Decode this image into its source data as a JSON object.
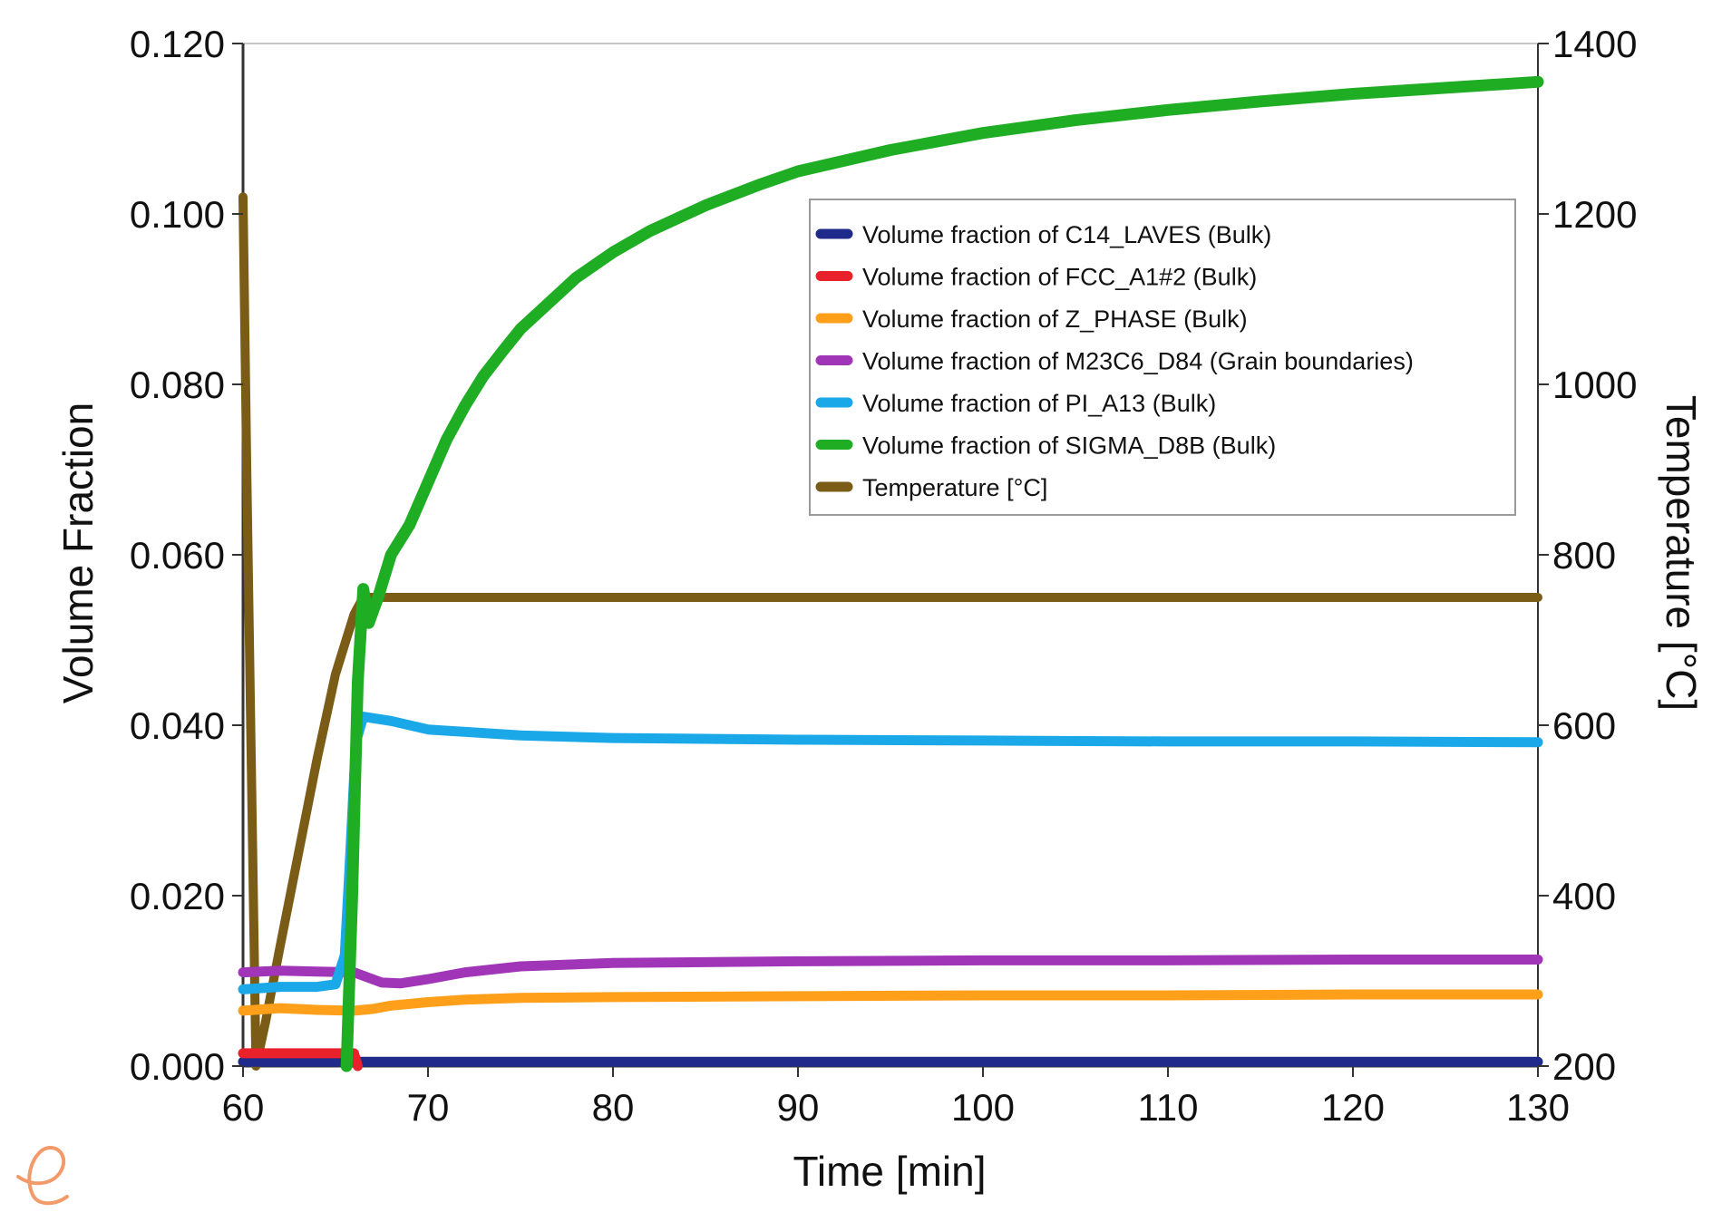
{
  "chart_data": {
    "type": "line",
    "xlabel": "Time [min]",
    "ylabel": "Volume Fraction",
    "y2label": "Temperature [°C]",
    "xlim": [
      60,
      130
    ],
    "ylim": [
      0,
      0.12
    ],
    "y2lim": [
      200,
      1400
    ],
    "x_ticks": [
      "60",
      "70",
      "80",
      "90",
      "100",
      "110",
      "120",
      "130"
    ],
    "y_ticks": [
      "0.000",
      "0.020",
      "0.040",
      "0.060",
      "0.080",
      "0.100",
      "0.120"
    ],
    "y2_ticks": [
      "200",
      "400",
      "600",
      "800",
      "1000",
      "1200",
      "1400"
    ],
    "grid": false,
    "legend_position": "upper-right",
    "series": [
      {
        "name": "Volume fraction of C14_LAVES (Bulk)",
        "color": "#1f2a8a",
        "axis": "left",
        "points": [
          [
            60,
            0.0005
          ],
          [
            130,
            0.0005
          ]
        ]
      },
      {
        "name": "Volume fraction of FCC_A1#2 (Bulk)",
        "color": "#e8212b",
        "axis": "left",
        "points": [
          [
            60,
            0.0015
          ],
          [
            63,
            0.0015
          ],
          [
            66,
            0.0015
          ],
          [
            66.2,
            0.0
          ]
        ]
      },
      {
        "name": "Volume fraction of Z_PHASE (Bulk)",
        "color": "#ff9f1a",
        "axis": "left",
        "points": [
          [
            60,
            0.0065
          ],
          [
            62,
            0.0068
          ],
          [
            64,
            0.0066
          ],
          [
            66,
            0.0065
          ],
          [
            67,
            0.0067
          ],
          [
            68,
            0.0071
          ],
          [
            70,
            0.0075
          ],
          [
            72,
            0.0078
          ],
          [
            75,
            0.008
          ],
          [
            80,
            0.0081
          ],
          [
            90,
            0.0082
          ],
          [
            100,
            0.0083
          ],
          [
            110,
            0.0083
          ],
          [
            120,
            0.0084
          ],
          [
            130,
            0.0084
          ]
        ]
      },
      {
        "name": "Volume fraction of M23C6_D84 (Grain boundaries)",
        "color": "#a035b8",
        "axis": "left",
        "points": [
          [
            60,
            0.011
          ],
          [
            62,
            0.0112
          ],
          [
            64,
            0.0111
          ],
          [
            66,
            0.011
          ],
          [
            67,
            0.0102
          ],
          [
            67.5,
            0.0098
          ],
          [
            68.5,
            0.0097
          ],
          [
            70,
            0.0102
          ],
          [
            72,
            0.011
          ],
          [
            75,
            0.0117
          ],
          [
            80,
            0.0121
          ],
          [
            90,
            0.0123
          ],
          [
            100,
            0.0124
          ],
          [
            110,
            0.0124
          ],
          [
            120,
            0.0125
          ],
          [
            130,
            0.0125
          ]
        ]
      },
      {
        "name": "Volume fraction of PI_A13 (Bulk)",
        "color": "#1aa8e8",
        "axis": "left",
        "points": [
          [
            60,
            0.009
          ],
          [
            62,
            0.0093
          ],
          [
            64,
            0.0093
          ],
          [
            65,
            0.0096
          ],
          [
            65.5,
            0.013
          ],
          [
            65.8,
            0.025
          ],
          [
            66.1,
            0.038
          ],
          [
            66.5,
            0.041
          ],
          [
            68,
            0.0405
          ],
          [
            70,
            0.0395
          ],
          [
            75,
            0.0388
          ],
          [
            80,
            0.0385
          ],
          [
            90,
            0.0383
          ],
          [
            100,
            0.0382
          ],
          [
            110,
            0.0381
          ],
          [
            120,
            0.0381
          ],
          [
            130,
            0.038
          ]
        ]
      },
      {
        "name": "Volume fraction of SIGMA_D8B (Bulk)",
        "color": "#1fad24",
        "axis": "left",
        "points": [
          [
            65.6,
            0.0
          ],
          [
            65.9,
            0.02
          ],
          [
            66.2,
            0.045
          ],
          [
            66.5,
            0.056
          ],
          [
            66.8,
            0.052
          ],
          [
            67.3,
            0.055
          ],
          [
            68,
            0.06
          ],
          [
            69,
            0.0635
          ],
          [
            70,
            0.0685
          ],
          [
            71,
            0.0735
          ],
          [
            72,
            0.0775
          ],
          [
            73,
            0.081
          ],
          [
            74,
            0.0838
          ],
          [
            75,
            0.0865
          ],
          [
            76,
            0.0885
          ],
          [
            78,
            0.0925
          ],
          [
            80,
            0.0955
          ],
          [
            82,
            0.098
          ],
          [
            85,
            0.101
          ],
          [
            88,
            0.1035
          ],
          [
            90,
            0.105
          ],
          [
            95,
            0.1075
          ],
          [
            100,
            0.1095
          ],
          [
            105,
            0.111
          ],
          [
            110,
            0.1122
          ],
          [
            115,
            0.1132
          ],
          [
            120,
            0.1141
          ],
          [
            125,
            0.1148
          ],
          [
            130,
            0.1155
          ]
        ]
      },
      {
        "name": "Temperature [°C]",
        "color": "#7a5c16",
        "axis": "right",
        "points": [
          [
            60,
            1220
          ],
          [
            60.2,
            900
          ],
          [
            60.7,
            200
          ],
          [
            61.2,
            250
          ],
          [
            62,
            340
          ],
          [
            63,
            450
          ],
          [
            64,
            560
          ],
          [
            65,
            660
          ],
          [
            66,
            730
          ],
          [
            66.5,
            750
          ],
          [
            67,
            750
          ],
          [
            80,
            750
          ],
          [
            100,
            750
          ],
          [
            130,
            750
          ]
        ]
      }
    ]
  }
}
